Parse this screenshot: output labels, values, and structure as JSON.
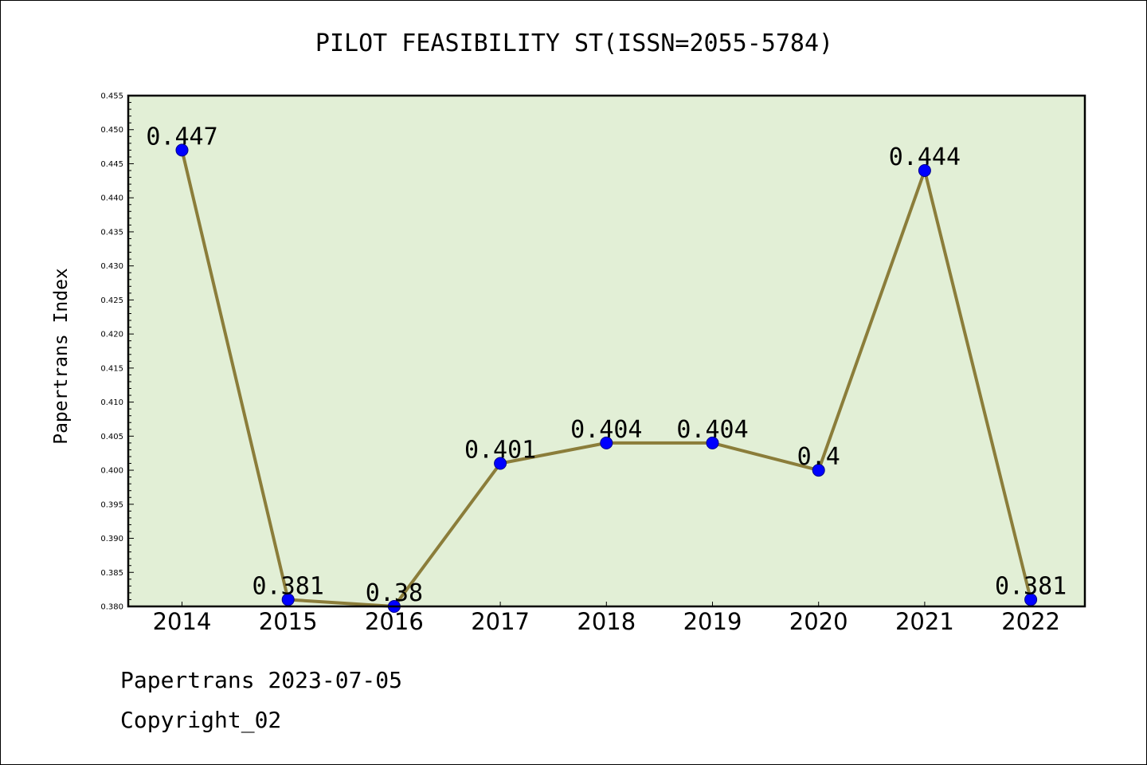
{
  "title": "PILOT FEASIBILITY ST(ISSN=2055-5784)",
  "footer": {
    "line1": "Papertrans 2023-07-05",
    "line2": "Copyright_02"
  },
  "colors": {
    "plot_background": "#e2efd6",
    "line": "#8b7d3a",
    "marker": "#0000ff"
  },
  "chart_data": {
    "type": "line",
    "ylabel": "Papertrans Index",
    "categories": [
      "2014",
      "2015",
      "2016",
      "2017",
      "2018",
      "2019",
      "2020",
      "2021",
      "2022"
    ],
    "values": [
      0.447,
      0.381,
      0.38,
      0.401,
      0.404,
      0.404,
      0.4,
      0.444,
      0.381
    ],
    "data_labels": [
      "0.447",
      "0.381",
      "0.38",
      "0.401",
      "0.404",
      "0.404",
      "0.4",
      "0.444",
      "0.381"
    ],
    "ylim": [
      0.38,
      0.455
    ],
    "y_ticks": [
      "0.380",
      "0.385",
      "0.390",
      "0.395",
      "0.400",
      "0.405",
      "0.410",
      "0.415",
      "0.420",
      "0.425",
      "0.430",
      "0.435",
      "0.440",
      "0.445",
      "0.450",
      "0.455"
    ],
    "grid": false
  }
}
